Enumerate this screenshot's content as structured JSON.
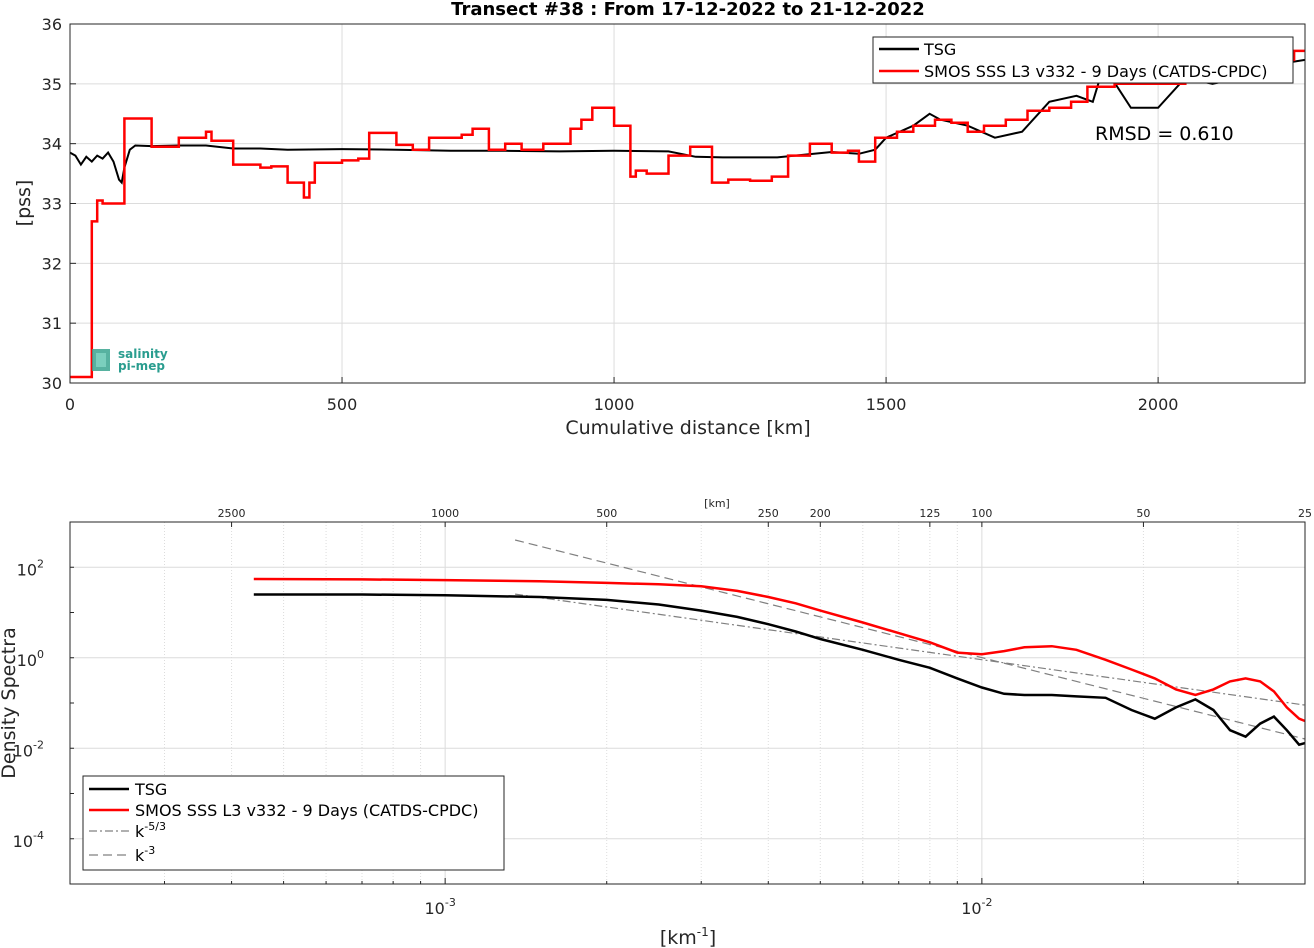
{
  "title": "Transect #38 : From 17-12-2022 to 21-12-2022",
  "logo": {
    "line1": "salinity",
    "line2": "pi-mep"
  },
  "colors": {
    "tsg": "#000000",
    "smos": "#ff0000",
    "ref": "#808080"
  },
  "chart_data": [
    {
      "type": "line",
      "xlabel": "Cumulative distance [km]",
      "ylabel": "[pss]",
      "xlim": [
        0,
        2270
      ],
      "ylim": [
        30,
        36
      ],
      "xticks": [
        0,
        500,
        1000,
        1500,
        2000
      ],
      "yticks": [
        30,
        31,
        32,
        33,
        34,
        35,
        36
      ],
      "grid": true,
      "legend_placement": "top-right",
      "annotation": "RMSD = 0.610",
      "series": [
        {
          "name": "TSG",
          "x": [
            0,
            10,
            20,
            30,
            40,
            50,
            60,
            70,
            80,
            90,
            95,
            100,
            110,
            120,
            150,
            200,
            250,
            300,
            350,
            400,
            500,
            600,
            700,
            800,
            900,
            1000,
            1100,
            1150,
            1200,
            1300,
            1400,
            1450,
            1480,
            1500,
            1550,
            1580,
            1600,
            1650,
            1700,
            1750,
            1800,
            1850,
            1880,
            1900,
            1950,
            2000,
            2050,
            2100,
            2150,
            2200,
            2270
          ],
          "y": [
            33.85,
            33.8,
            33.65,
            33.78,
            33.7,
            33.8,
            33.75,
            33.85,
            33.7,
            33.4,
            33.35,
            33.6,
            33.9,
            33.97,
            33.96,
            33.97,
            33.97,
            33.92,
            33.92,
            33.9,
            33.91,
            33.9,
            33.88,
            33.88,
            33.87,
            33.88,
            33.87,
            33.78,
            33.77,
            33.77,
            33.86,
            33.83,
            33.9,
            34.1,
            34.3,
            34.5,
            34.4,
            34.3,
            34.1,
            34.2,
            34.7,
            34.8,
            34.7,
            35.3,
            34.6,
            34.6,
            35.1,
            35.0,
            35.1,
            35.3,
            35.4
          ]
        },
        {
          "name": "SMOS SSS L3 v332 - 9 Days (CATDS-CPDC)",
          "step": true,
          "x": [
            0,
            40,
            42,
            45,
            50,
            60,
            100,
            150,
            200,
            250,
            260,
            300,
            350,
            370,
            400,
            430,
            440,
            450,
            500,
            530,
            550,
            600,
            630,
            660,
            720,
            740,
            770,
            800,
            830,
            870,
            920,
            940,
            960,
            1000,
            1030,
            1040,
            1060,
            1100,
            1140,
            1180,
            1210,
            1250,
            1290,
            1320,
            1360,
            1400,
            1430,
            1450,
            1480,
            1520,
            1550,
            1590,
            1620,
            1650,
            1680,
            1720,
            1760,
            1800,
            1840,
            1870,
            1920,
            1950,
            2000,
            2050,
            2100,
            2150,
            2200,
            2250,
            2270
          ],
          "y": [
            30.1,
            32.7,
            32.7,
            32.7,
            33.05,
            33.0,
            34.42,
            33.95,
            34.1,
            34.2,
            34.05,
            33.65,
            33.6,
            33.62,
            33.35,
            33.1,
            33.35,
            33.68,
            33.72,
            33.75,
            34.18,
            33.98,
            33.9,
            34.1,
            34.15,
            34.25,
            33.9,
            34.0,
            33.9,
            34.0,
            34.25,
            34.4,
            34.6,
            34.3,
            33.45,
            33.55,
            33.5,
            33.8,
            33.95,
            33.35,
            33.4,
            33.38,
            33.45,
            33.8,
            34.0,
            33.85,
            33.88,
            33.7,
            34.1,
            34.2,
            34.3,
            34.4,
            34.35,
            34.2,
            34.3,
            34.4,
            34.55,
            34.6,
            34.7,
            34.95,
            35.0,
            35.0,
            35.0,
            35.1,
            35.2,
            35.3,
            35.4,
            35.55,
            35.55
          ]
        }
      ]
    },
    {
      "type": "line",
      "xlabel": "[km⁻¹]",
      "ylabel": "Density Spectra",
      "top_axis_label": "[km]",
      "x_scale": "log",
      "y_scale": "log",
      "xlim": [
        0.0002,
        0.04
      ],
      "ylim": [
        1e-05,
        1000
      ],
      "xticks": [
        0.001,
        0.01
      ],
      "xtick_labels": [
        "10",
        "10"
      ],
      "xtick_exponents": [
        "-3",
        "-2"
      ],
      "yticks": [
        0.0001,
        0.01,
        1,
        100
      ],
      "ytick_labels": [
        "10",
        "10",
        "10",
        "10"
      ],
      "ytick_exponents": [
        "-4",
        "-2",
        "0",
        "2"
      ],
      "top_ticks_km": [
        2500,
        1000,
        500,
        250,
        200,
        125,
        100,
        50,
        25
      ],
      "top_tick_labels": [
        "2500",
        "1000",
        "500",
        "250",
        "200",
        "125",
        "100",
        "50",
        "25"
      ],
      "grid": true,
      "legend_placement": "bottom-left",
      "legend": [
        {
          "label": "TSG",
          "exp": ""
        },
        {
          "label": "SMOS SSS L3 v332 - 9 Days (CATDS-CPDC)",
          "exp": ""
        },
        {
          "label": "k",
          "exp": "-5/3"
        },
        {
          "label": "k",
          "exp": "-3"
        }
      ],
      "series": [
        {
          "name": "TSG",
          "x": [
            0.00044,
            0.0007,
            0.001,
            0.0015,
            0.002,
            0.0025,
            0.003,
            0.0035,
            0.004,
            0.0045,
            0.005,
            0.006,
            0.007,
            0.008,
            0.009,
            0.01,
            0.011,
            0.012,
            0.0135,
            0.015,
            0.017,
            0.019,
            0.021,
            0.023,
            0.025,
            0.027,
            0.029,
            0.031,
            0.033,
            0.035,
            0.037,
            0.039,
            0.04
          ],
          "y": [
            25,
            25,
            24,
            22,
            19,
            15,
            11,
            8,
            5.5,
            3.8,
            2.6,
            1.5,
            0.9,
            0.6,
            0.35,
            0.22,
            0.16,
            0.15,
            0.15,
            0.14,
            0.13,
            0.07,
            0.045,
            0.08,
            0.12,
            0.07,
            0.025,
            0.018,
            0.035,
            0.05,
            0.025,
            0.012,
            0.013
          ]
        },
        {
          "name": "SMOS SSS L3 v332 - 9 Days (CATDS-CPDC)",
          "x": [
            0.00044,
            0.0007,
            0.001,
            0.0015,
            0.002,
            0.0025,
            0.003,
            0.0035,
            0.004,
            0.0045,
            0.005,
            0.006,
            0.007,
            0.008,
            0.009,
            0.01,
            0.011,
            0.012,
            0.0135,
            0.015,
            0.017,
            0.019,
            0.021,
            0.023,
            0.025,
            0.027,
            0.029,
            0.031,
            0.033,
            0.035,
            0.037,
            0.039,
            0.04
          ],
          "y": [
            55,
            54,
            52,
            49,
            45,
            42,
            38,
            30,
            22,
            16,
            11,
            6,
            3.5,
            2.2,
            1.3,
            1.2,
            1.4,
            1.7,
            1.8,
            1.5,
            0.9,
            0.55,
            0.35,
            0.2,
            0.15,
            0.2,
            0.3,
            0.35,
            0.3,
            0.18,
            0.08,
            0.045,
            0.04
          ]
        },
        {
          "name": "k-5/3",
          "dash": "dashdot",
          "x": [
            0.00135,
            0.04
          ],
          "y": [
            25.5,
            0.09
          ]
        },
        {
          "name": "k-3",
          "dash": "dashed",
          "x": [
            0.00135,
            0.04
          ],
          "y": [
            400,
            0.016
          ]
        }
      ]
    }
  ]
}
